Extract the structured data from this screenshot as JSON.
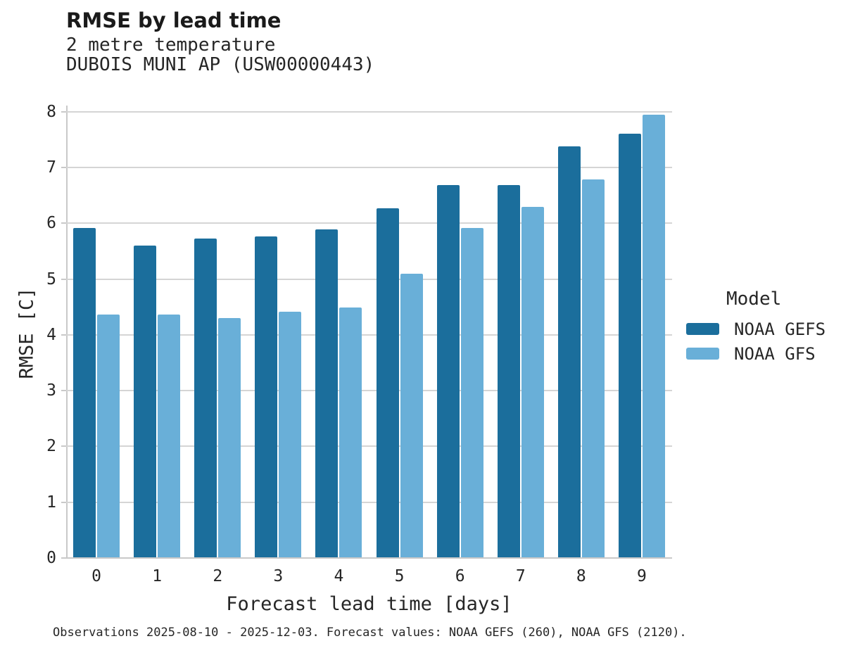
{
  "header": {
    "title": "RMSE by lead time",
    "subtitle_line1": "2 metre temperature",
    "subtitle_line2": "DUBOIS MUNI AP (USW00000443)"
  },
  "legend": {
    "title": "Model",
    "entries": [
      {
        "label": "NOAA GEFS",
        "color": "#1B6E9C"
      },
      {
        "label": "NOAA GFS",
        "color": "#69AFD8"
      }
    ]
  },
  "footer": {
    "note": "Observations 2025-08-10 - 2025-12-03. Forecast values: NOAA GEFS (260), NOAA GFS (2120)."
  },
  "chart_data": {
    "type": "bar",
    "title": "RMSE by lead time",
    "subtitle": [
      "2 metre temperature",
      "DUBOIS MUNI AP (USW00000443)"
    ],
    "categories": [
      "0",
      "1",
      "2",
      "3",
      "4",
      "5",
      "6",
      "7",
      "8",
      "9"
    ],
    "series": [
      {
        "name": "NOAA GEFS",
        "color": "#1B6E9C",
        "values": [
          5.92,
          5.6,
          5.73,
          5.77,
          5.89,
          6.27,
          6.69,
          6.68,
          7.38,
          7.61
        ]
      },
      {
        "name": "NOAA GFS",
        "color": "#69AFD8",
        "values": [
          4.37,
          4.37,
          4.3,
          4.41,
          4.49,
          5.09,
          5.91,
          6.3,
          6.79,
          7.95
        ]
      }
    ],
    "xlabel": "Forecast lead time [days]",
    "ylabel": "RMSE [C]",
    "ylim": [
      0,
      8.11
    ],
    "yticks": [
      0,
      1,
      2,
      3,
      4,
      5,
      6,
      7,
      8
    ],
    "grid": "horizontal",
    "legend_position": "right",
    "legend_title": "Model",
    "caption": "Observations 2025-08-10 - 2025-12-03. Forecast values: NOAA GEFS (260), NOAA GFS (2120)."
  },
  "colors": {
    "grid": "#D5D5D5",
    "axis": "#C9C9C9",
    "text": "#262626"
  }
}
